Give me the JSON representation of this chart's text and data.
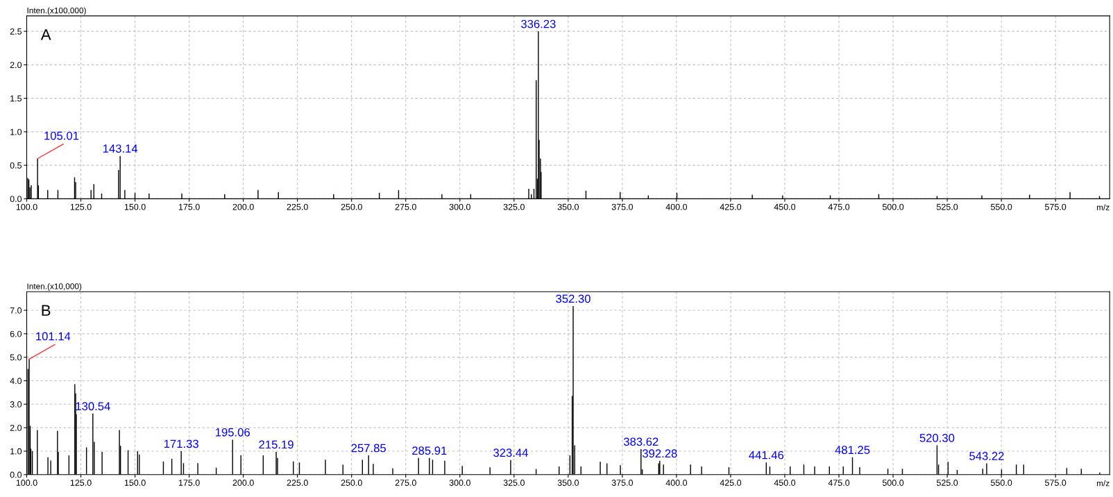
{
  "chart_data": [
    {
      "type": "bar",
      "title": "A",
      "ylabel": "Inten.(x100,000)",
      "xlabel": "m/z",
      "grid": true,
      "legend": false,
      "x": [
        100.5,
        101.0,
        101.5,
        102.1,
        105.01,
        105.4,
        109.7,
        114.4,
        122.1,
        122.6,
        129.7,
        131.0,
        134.6,
        142.4,
        143.14,
        145.3,
        150.0,
        156.5,
        171.6,
        191.4,
        206.8,
        216.2,
        241.7,
        262.8,
        271.7,
        291.7,
        305.0,
        331.8,
        333.0,
        334.2,
        335.23,
        335.8,
        336.23,
        336.6,
        337.2,
        337.5,
        358.2,
        374.0,
        387.0,
        400.2,
        435.0,
        449.0,
        471.0,
        493.4,
        520.3,
        541.0,
        563.0,
        581.7,
        595.3
      ],
      "series": [
        {
          "color": "#000000",
          "values": [
            0.31,
            0.29,
            0.17,
            0.2,
            0.6,
            0.2,
            0.13,
            0.13,
            0.32,
            0.25,
            0.13,
            0.22,
            0.08,
            0.43,
            0.64,
            0.13,
            0.09,
            0.08,
            0.08,
            0.07,
            0.13,
            0.1,
            0.07,
            0.09,
            0.13,
            0.07,
            0.07,
            0.15,
            0.07,
            0.15,
            1.77,
            0.3,
            2.5,
            0.88,
            0.6,
            0.4,
            0.12,
            0.1,
            0.05,
            0.09,
            0.06,
            0.05,
            0.05,
            0.07,
            0.04,
            0.05,
            0.06,
            0.1,
            0.04
          ]
        }
      ],
      "xlim": [
        100,
        600
      ],
      "ylim": [
        0,
        2.73
      ],
      "xticks": [
        {
          "value": 100,
          "label": "100.0"
        },
        {
          "value": 125,
          "label": "125.0"
        },
        {
          "value": 150,
          "label": "150.0"
        },
        {
          "value": 175,
          "label": "175.0"
        },
        {
          "value": 200,
          "label": "200.0"
        },
        {
          "value": 225,
          "label": "225.0"
        },
        {
          "value": 250,
          "label": "250.0"
        },
        {
          "value": 275,
          "label": "275.0"
        },
        {
          "value": 300,
          "label": "300.0"
        },
        {
          "value": 325,
          "label": "325.0"
        },
        {
          "value": 350,
          "label": "350.0"
        },
        {
          "value": 375,
          "label": "375.0"
        },
        {
          "value": 400,
          "label": "400.0"
        },
        {
          "value": 425,
          "label": "425.0"
        },
        {
          "value": 450,
          "label": "450.0"
        },
        {
          "value": 475,
          "label": "475.0"
        },
        {
          "value": 500,
          "label": "500.0"
        },
        {
          "value": 525,
          "label": "525.0"
        },
        {
          "value": 550,
          "label": "550.0"
        },
        {
          "value": 575,
          "label": "575.0"
        }
      ],
      "yticks": [
        {
          "value": 0,
          "label": "0.0"
        },
        0.5,
        {
          "value": 1,
          "label": "1.0"
        },
        1.5,
        {
          "value": 2,
          "label": "2.0"
        },
        2.5
      ],
      "annotations": [
        {
          "text": "105.01",
          "x": 105.01,
          "y": 0.6
        },
        {
          "text": "143.14",
          "x": 143.14,
          "y": 0.64
        },
        {
          "text": "336.23",
          "x": 336.23,
          "y": 2.5
        }
      ]
    },
    {
      "type": "bar",
      "title": "B",
      "ylabel": "Inten.(x10,000)",
      "xlabel": "m/z",
      "grid": true,
      "legend": false,
      "x": [
        100.6,
        101.14,
        101.6,
        101.9,
        102.6,
        104.9,
        109.8,
        111.1,
        114.2,
        114.6,
        119.5,
        122.2,
        122.6,
        122.9,
        127.6,
        130.54,
        131.2,
        134.8,
        142.8,
        143.3,
        146.8,
        151.2,
        152.0,
        163.1,
        167.0,
        171.33,
        172.4,
        179.0,
        187.5,
        195.06,
        198.9,
        209.2,
        215.19,
        215.8,
        223.1,
        225.9,
        237.9,
        246.0,
        255.0,
        257.85,
        260.0,
        269.0,
        280.9,
        285.91,
        287.4,
        293.0,
        301.1,
        313.9,
        323.44,
        335.2,
        345.8,
        350.8,
        351.85,
        352.3,
        353.0,
        355.9,
        364.8,
        367.9,
        374.1,
        383.62,
        384.2,
        391.8,
        392.28,
        394.0,
        406.5,
        411.6,
        424.2,
        441.46,
        443.1,
        452.5,
        458.8,
        463.8,
        470.6,
        477.0,
        481.25,
        484.6,
        497.6,
        504.3,
        520.3,
        521.0,
        525.4,
        529.6,
        541.4,
        543.22,
        550.1,
        556.9,
        560.3,
        580.2,
        586.9,
        595.4
      ],
      "series": [
        {
          "color": "#000000",
          "values": [
            4.5,
            4.92,
            2.08,
            1.1,
            1.0,
            1.9,
            0.74,
            0.6,
            1.86,
            0.97,
            0.82,
            3.85,
            3.46,
            2.57,
            1.16,
            2.6,
            1.4,
            0.97,
            1.9,
            1.23,
            1.04,
            1.0,
            0.86,
            0.56,
            0.67,
            1.0,
            0.49,
            0.49,
            0.3,
            1.49,
            0.83,
            0.82,
            0.97,
            0.71,
            0.56,
            0.52,
            0.64,
            0.42,
            0.64,
            0.82,
            0.46,
            0.27,
            0.71,
            0.71,
            0.64,
            0.59,
            0.37,
            0.31,
            0.62,
            0.24,
            0.35,
            0.82,
            3.36,
            7.18,
            1.25,
            0.35,
            0.55,
            0.48,
            0.4,
            1.09,
            0.22,
            0.48,
            0.59,
            0.43,
            0.43,
            0.35,
            0.32,
            0.52,
            0.35,
            0.35,
            0.43,
            0.35,
            0.35,
            0.35,
            0.74,
            0.32,
            0.25,
            0.25,
            1.25,
            0.43,
            0.55,
            0.2,
            0.25,
            0.48,
            0.22,
            0.43,
            0.43,
            0.28,
            0.25,
            0.09
          ]
        }
      ],
      "xlim": [
        100,
        600
      ],
      "ylim": [
        0,
        7.79
      ],
      "xticks": [
        {
          "value": 100,
          "label": "100.0"
        },
        {
          "value": 125,
          "label": "125.0"
        },
        {
          "value": 150,
          "label": "150.0"
        },
        {
          "value": 175,
          "label": "175.0"
        },
        {
          "value": 200,
          "label": "200.0"
        },
        {
          "value": 225,
          "label": "225.0"
        },
        {
          "value": 250,
          "label": "250.0"
        },
        {
          "value": 275,
          "label": "275.0"
        },
        {
          "value": 300,
          "label": "300.0"
        },
        {
          "value": 325,
          "label": "325.0"
        },
        {
          "value": 350,
          "label": "350.0"
        },
        {
          "value": 375,
          "label": "375.0"
        },
        {
          "value": 400,
          "label": "400.0"
        },
        {
          "value": 425,
          "label": "425.0"
        },
        {
          "value": 450,
          "label": "450.0"
        },
        {
          "value": 475,
          "label": "475.0"
        },
        {
          "value": 500,
          "label": "500.0"
        },
        {
          "value": 525,
          "label": "525.0"
        },
        {
          "value": 550,
          "label": "550.0"
        },
        {
          "value": 575,
          "label": "575.0"
        }
      ],
      "yticks": [
        {
          "value": 0,
          "label": "0.0"
        },
        {
          "value": 1,
          "label": "1.0"
        },
        {
          "value": 2,
          "label": "2.0"
        },
        {
          "value": 3,
          "label": "3.0"
        },
        {
          "value": 4,
          "label": "4.0"
        },
        {
          "value": 5,
          "label": "5.0"
        },
        {
          "value": 6,
          "label": "6.0"
        },
        {
          "value": 7,
          "label": "7.0"
        }
      ],
      "annotations": [
        {
          "text": "101.14",
          "x": 101.14,
          "y": 4.92
        },
        {
          "text": "130.54",
          "x": 130.54,
          "y": 2.6
        },
        {
          "text": "171.33",
          "x": 171.33,
          "y": 1.0
        },
        {
          "text": "195.06",
          "x": 195.06,
          "y": 1.49
        },
        {
          "text": "215.19",
          "x": 215.19,
          "y": 0.97
        },
        {
          "text": "257.85",
          "x": 257.85,
          "y": 0.82
        },
        {
          "text": "285.91",
          "x": 285.91,
          "y": 0.71
        },
        {
          "text": "323.44",
          "x": 323.44,
          "y": 0.62
        },
        {
          "text": "352.30",
          "x": 352.3,
          "y": 7.18
        },
        {
          "text": "383.62",
          "x": 383.62,
          "y": 1.09
        },
        {
          "text": "392.28",
          "x": 392.28,
          "y": 0.59
        },
        {
          "text": "441.46",
          "x": 441.46,
          "y": 0.52
        },
        {
          "text": "481.25",
          "x": 481.25,
          "y": 0.74
        },
        {
          "text": "520.30",
          "x": 520.3,
          "y": 1.25
        },
        {
          "text": "543.22",
          "x": 543.22,
          "y": 0.48
        }
      ]
    }
  ]
}
